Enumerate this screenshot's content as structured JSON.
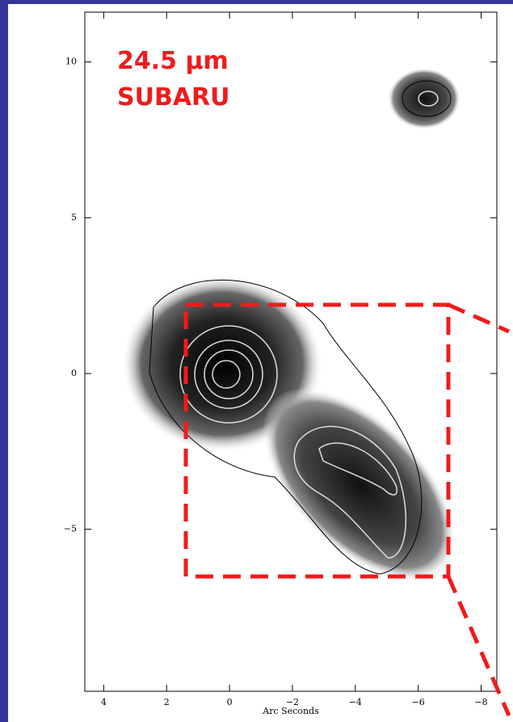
{
  "chart_data": {
    "type": "image",
    "annotation": [
      "24.5 μm",
      "SUBARU"
    ],
    "xlabel": "Arc Seconds",
    "xlim": [
      4.6,
      -8.5
    ],
    "ylim": [
      -10.2,
      11.6
    ],
    "xticks": [
      4,
      2,
      0,
      {
        "value": -2,
        "label": "−2"
      },
      {
        "value": -4,
        "label": "−4"
      },
      {
        "value": -6,
        "label": "−6"
      },
      {
        "value": -8,
        "label": "−8"
      }
    ],
    "yticks": [
      {
        "value": -5,
        "label": "−5"
      },
      0,
      5,
      10
    ]
  }
}
